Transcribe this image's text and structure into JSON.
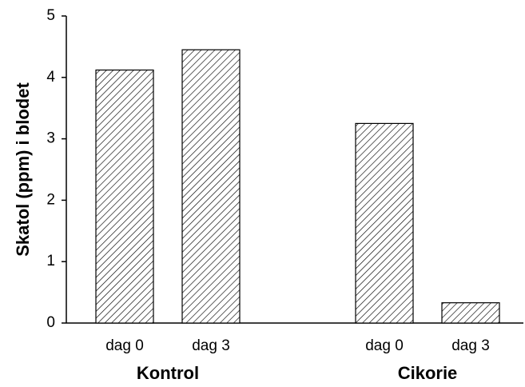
{
  "chart_data": {
    "type": "bar",
    "y_label": "Skatol (ppm) i blodet",
    "groups": [
      "Kontrol",
      "Cikorie"
    ],
    "categories": [
      "dag 0",
      "dag 3",
      "dag 0",
      "dag 3"
    ],
    "values": [
      4.12,
      4.45,
      3.25,
      0.33
    ],
    "ylim": [
      0,
      5
    ],
    "yticks": [
      0,
      1,
      2,
      3,
      4,
      5
    ],
    "color": "#000000",
    "pattern": "hatch",
    "grid": false
  }
}
